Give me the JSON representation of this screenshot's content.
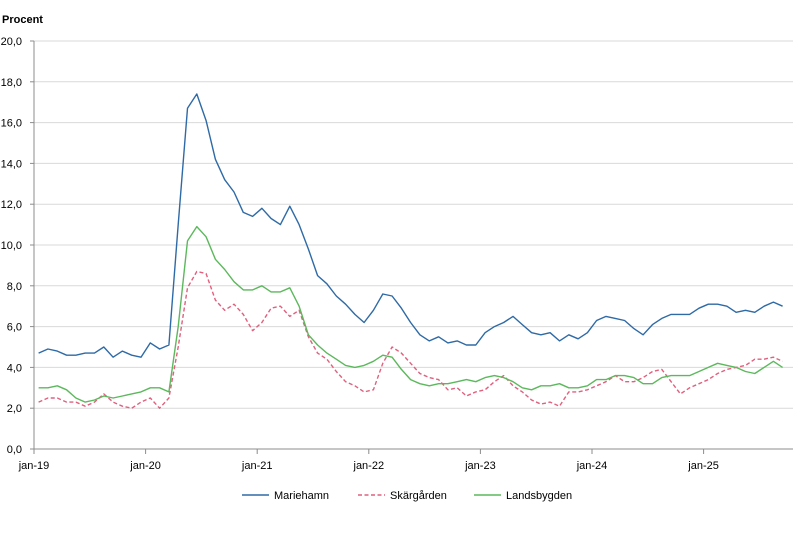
{
  "chart_data": {
    "type": "line",
    "ylabel": "Procent",
    "ylim": [
      0,
      20
    ],
    "ystep": 2,
    "yticklabels": [
      "0,0",
      "2,0",
      "4,0",
      "6,0",
      "8,0",
      "10,0",
      "12,0",
      "14,0",
      "16,0",
      "18,0",
      "20,0"
    ],
    "xlim": [
      "2019-01",
      "2025-12"
    ],
    "xticklabels": [
      "jan-19",
      "jan-20",
      "jan-21",
      "jan-22",
      "jan-23",
      "jan-24",
      "jan-25"
    ],
    "grid": "horizontal",
    "legend_position": "bottom",
    "x_start": "2019-01",
    "series": [
      {
        "name": "Mariehamn",
        "color": "#2e6aa6",
        "dash": "solid",
        "values": [
          4.7,
          4.9,
          4.8,
          4.6,
          4.6,
          4.7,
          4.7,
          5.0,
          4.5,
          4.8,
          4.6,
          4.5,
          5.2,
          4.9,
          5.1,
          11.0,
          16.7,
          17.4,
          16.1,
          14.2,
          13.2,
          12.6,
          11.6,
          11.4,
          11.8,
          11.3,
          11.0,
          11.9,
          11.0,
          9.8,
          8.5,
          8.1,
          7.5,
          7.1,
          6.6,
          6.2,
          6.8,
          7.6,
          7.5,
          6.9,
          6.2,
          5.6,
          5.3,
          5.5,
          5.2,
          5.3,
          5.1,
          5.1,
          5.7,
          6.0,
          6.2,
          6.5,
          6.1,
          5.7,
          5.6,
          5.7,
          5.3,
          5.6,
          5.4,
          5.7,
          6.3,
          6.5,
          6.4,
          6.3,
          5.9,
          5.6,
          6.1,
          6.4,
          6.6,
          6.6,
          6.6,
          6.9,
          7.1,
          7.1,
          7.0,
          6.7,
          6.8,
          6.7,
          7.0,
          7.2,
          7.0
        ]
      },
      {
        "name": "Skärgården",
        "color": "#e0607e",
        "dash": "dashed",
        "values": [
          2.3,
          2.5,
          2.5,
          2.3,
          2.3,
          2.1,
          2.3,
          2.7,
          2.3,
          2.1,
          2.0,
          2.3,
          2.5,
          2.0,
          2.5,
          5.0,
          7.9,
          8.7,
          8.6,
          7.3,
          6.8,
          7.1,
          6.6,
          5.8,
          6.2,
          6.9,
          7.0,
          6.5,
          6.8,
          5.5,
          4.7,
          4.4,
          3.8,
          3.3,
          3.1,
          2.8,
          2.9,
          4.2,
          5.0,
          4.7,
          4.2,
          3.7,
          3.5,
          3.4,
          2.9,
          3.0,
          2.6,
          2.8,
          2.9,
          3.3,
          3.6,
          3.1,
          2.8,
          2.4,
          2.2,
          2.3,
          2.1,
          2.8,
          2.8,
          2.9,
          3.1,
          3.3,
          3.6,
          3.3,
          3.3,
          3.5,
          3.8,
          3.9,
          3.3,
          2.7,
          3.0,
          3.2,
          3.4,
          3.7,
          3.9,
          4.0,
          4.1,
          4.4,
          4.4,
          4.5,
          4.3
        ]
      },
      {
        "name": "Landsbygden",
        "color": "#5cb85c",
        "dash": "solid",
        "values": [
          3.0,
          3.0,
          3.1,
          2.9,
          2.5,
          2.3,
          2.4,
          2.6,
          2.5,
          2.6,
          2.7,
          2.8,
          3.0,
          3.0,
          2.8,
          6.0,
          10.2,
          10.9,
          10.4,
          9.3,
          8.8,
          8.2,
          7.8,
          7.8,
          8.0,
          7.7,
          7.7,
          7.9,
          7.0,
          5.6,
          5.1,
          4.7,
          4.4,
          4.1,
          4.0,
          4.1,
          4.3,
          4.6,
          4.5,
          3.9,
          3.4,
          3.2,
          3.1,
          3.2,
          3.2,
          3.3,
          3.4,
          3.3,
          3.5,
          3.6,
          3.5,
          3.3,
          3.0,
          2.9,
          3.1,
          3.1,
          3.2,
          3.0,
          3.0,
          3.1,
          3.4,
          3.4,
          3.6,
          3.6,
          3.5,
          3.2,
          3.2,
          3.5,
          3.6,
          3.6,
          3.6,
          3.8,
          4.0,
          4.2,
          4.1,
          4.0,
          3.8,
          3.7,
          4.0,
          4.3,
          4.0
        ]
      }
    ]
  }
}
